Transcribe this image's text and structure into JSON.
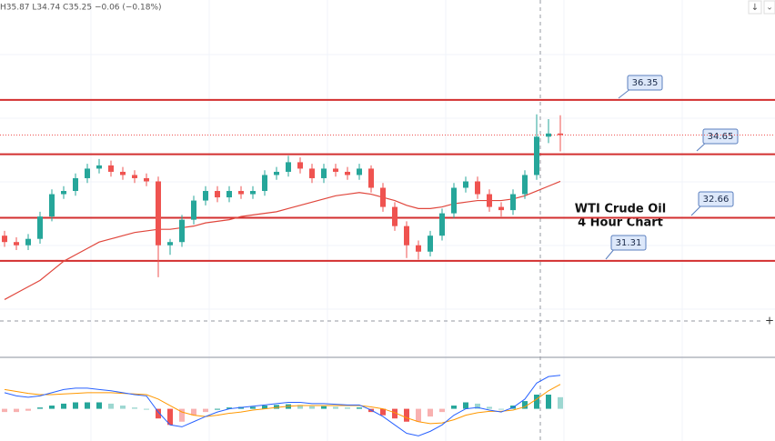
{
  "chart_data": {
    "type": "candlestick",
    "header": "H35.87 L34.74 C35.25 −0.06 (−0.18%)",
    "annotation": [
      "WTI Crude Oil",
      "4 Hour Chart"
    ],
    "ylim": [
      28.29,
      39.48
    ],
    "levels": [
      36.35,
      34.65,
      32.66,
      31.31
    ],
    "level_color": "#d32f2f",
    "up_color": "#26a69a",
    "down_color": "#ef5350",
    "open": [
      32.1,
      31.9,
      31.8,
      32.0,
      32.7,
      33.4,
      33.5,
      33.9,
      34.2,
      34.3,
      34.1,
      34.0,
      33.9,
      33.8,
      31.8,
      31.9,
      32.6,
      33.2,
      33.5,
      33.3,
      33.5,
      33.4,
      33.5,
      34.0,
      34.1,
      34.4,
      34.2,
      33.9,
      34.2,
      34.1,
      34.0,
      34.2,
      33.6,
      33.0,
      32.4,
      31.8,
      31.6,
      32.1,
      32.8,
      33.6,
      33.8,
      33.4,
      33.0,
      32.9,
      33.4,
      34.0,
      35.2,
      35.3
    ],
    "high": [
      32.25,
      32.05,
      32.15,
      32.85,
      33.55,
      33.65,
      34.05,
      34.35,
      34.5,
      34.45,
      34.25,
      34.15,
      34.05,
      33.95,
      32.0,
      32.75,
      33.35,
      33.65,
      33.65,
      33.65,
      33.65,
      33.65,
      34.15,
      34.25,
      34.6,
      34.55,
      34.35,
      34.35,
      34.35,
      34.25,
      34.35,
      34.3,
      33.75,
      33.15,
      32.55,
      31.95,
      32.25,
      32.95,
      33.75,
      33.95,
      33.95,
      33.55,
      33.15,
      33.55,
      34.15,
      35.9,
      35.75,
      35.87
    ],
    "low": [
      31.75,
      31.65,
      31.65,
      31.85,
      32.55,
      33.25,
      33.35,
      33.75,
      34.05,
      33.95,
      33.85,
      33.75,
      33.65,
      30.8,
      31.5,
      31.75,
      32.45,
      33.05,
      33.15,
      33.15,
      33.25,
      33.25,
      33.35,
      33.85,
      33.95,
      34.05,
      33.75,
      33.75,
      33.95,
      33.85,
      33.85,
      33.45,
      32.85,
      32.25,
      31.4,
      31.35,
      31.45,
      31.95,
      32.65,
      33.45,
      33.25,
      32.85,
      32.7,
      32.75,
      33.25,
      33.85,
      35.0,
      34.74
    ],
    "close": [
      31.9,
      31.8,
      32.0,
      32.7,
      33.4,
      33.5,
      33.9,
      34.2,
      34.3,
      34.1,
      34.0,
      33.9,
      33.8,
      31.8,
      31.9,
      32.6,
      33.2,
      33.5,
      33.3,
      33.5,
      33.4,
      33.5,
      34.0,
      34.1,
      34.4,
      34.2,
      33.9,
      34.2,
      34.1,
      34.0,
      34.2,
      33.6,
      33.0,
      32.4,
      31.8,
      31.6,
      32.1,
      32.8,
      33.6,
      33.8,
      33.4,
      33.0,
      32.9,
      33.4,
      34.0,
      35.2,
      35.3,
      35.25
    ],
    "moving_average": {
      "color": "#e0463c",
      "values": [
        30.1,
        30.3,
        30.5,
        30.7,
        31.0,
        31.3,
        31.5,
        31.7,
        31.9,
        32.0,
        32.1,
        32.2,
        32.25,
        32.3,
        32.3,
        32.35,
        32.4,
        32.5,
        32.55,
        32.6,
        32.7,
        32.75,
        32.8,
        32.85,
        32.95,
        33.05,
        33.15,
        33.25,
        33.35,
        33.4,
        33.45,
        33.4,
        33.3,
        33.2,
        33.05,
        32.95,
        32.95,
        33.0,
        33.1,
        33.15,
        33.2,
        33.2,
        33.2,
        33.25,
        33.35,
        33.5,
        33.65,
        33.8
      ]
    },
    "macd": {
      "ylim": [
        -0.5,
        0.7
      ],
      "histogram": {
        "up_color": "#26a69a",
        "down_color": "#ef5350",
        "values": [
          -0.05,
          -0.05,
          -0.03,
          0.02,
          0.05,
          0.08,
          0.1,
          0.1,
          0.1,
          0.08,
          0.05,
          0.02,
          0,
          -0.15,
          -0.25,
          -0.2,
          -0.1,
          -0.05,
          0,
          0.02,
          0.03,
          0.03,
          0.05,
          0.06,
          0.07,
          0.06,
          0.04,
          0.04,
          0.03,
          0.02,
          0.02,
          -0.05,
          -0.1,
          -0.15,
          -0.2,
          -0.2,
          -0.12,
          -0.05,
          0.05,
          0.1,
          0.08,
          0.03,
          0,
          0.05,
          0.12,
          0.22,
          0.22,
          0.18
        ]
      },
      "macd_line": {
        "color": "#2962ff",
        "values": [
          0.25,
          0.2,
          0.18,
          0.2,
          0.25,
          0.3,
          0.32,
          0.32,
          0.3,
          0.28,
          0.25,
          0.22,
          0.2,
          -0.05,
          -0.25,
          -0.28,
          -0.2,
          -0.12,
          -0.05,
          0,
          0.02,
          0.04,
          0.06,
          0.08,
          0.1,
          0.1,
          0.08,
          0.08,
          0.07,
          0.06,
          0.06,
          -0.02,
          -0.12,
          -0.25,
          -0.38,
          -0.42,
          -0.35,
          -0.25,
          -0.1,
          0,
          0.02,
          -0.02,
          -0.05,
          0.02,
          0.15,
          0.4,
          0.5,
          0.52
        ]
      },
      "signal_line": {
        "color": "#ff9800",
        "values": [
          0.3,
          0.27,
          0.24,
          0.22,
          0.22,
          0.23,
          0.24,
          0.25,
          0.25,
          0.25,
          0.24,
          0.23,
          0.22,
          0.15,
          0.05,
          -0.05,
          -0.1,
          -0.12,
          -0.1,
          -0.07,
          -0.05,
          -0.02,
          0,
          0.02,
          0.04,
          0.05,
          0.05,
          0.05,
          0.05,
          0.05,
          0.05,
          0.03,
          0,
          -0.06,
          -0.14,
          -0.2,
          -0.23,
          -0.22,
          -0.17,
          -0.1,
          -0.06,
          -0.04,
          -0.04,
          -0.02,
          0.03,
          0.15,
          0.28,
          0.38
        ]
      }
    }
  }
}
